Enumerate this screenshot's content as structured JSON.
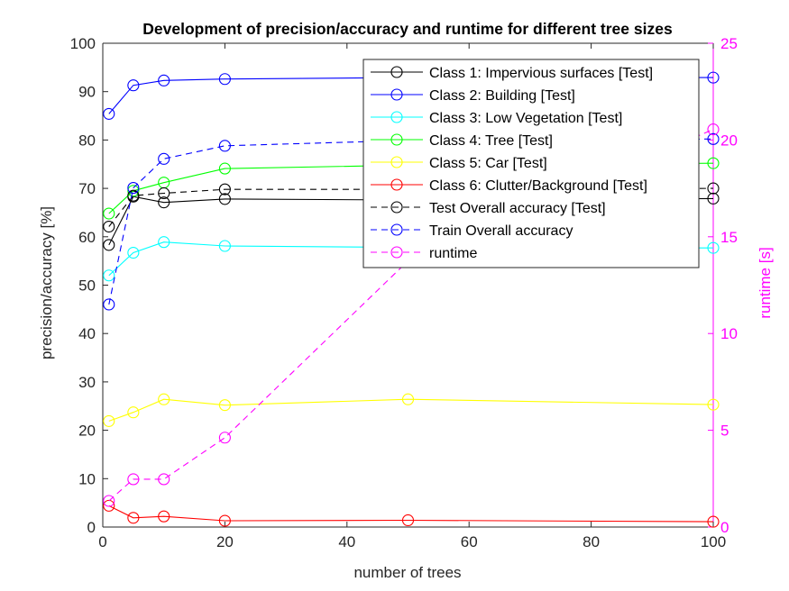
{
  "chart_data": {
    "type": "line",
    "title": "Development of precision/accuracy and runtime for different tree sizes",
    "xlabel": "number of trees",
    "ylabel_left": "precision/accuracy [%]",
    "ylabel_right": "runtime [s]",
    "xlim": [
      0,
      100
    ],
    "ylim_left": [
      0,
      100
    ],
    "ylim_right": [
      0,
      25
    ],
    "x_ticks": [
      0,
      20,
      40,
      60,
      80,
      100
    ],
    "y_ticks_left": [
      0,
      10,
      20,
      30,
      40,
      50,
      60,
      70,
      80,
      90,
      100
    ],
    "y_ticks_right": [
      0,
      5,
      10,
      15,
      20,
      25
    ],
    "x": [
      1,
      5,
      10,
      20,
      50,
      100
    ],
    "grid": false,
    "legend_position": "top-right",
    "colors": {
      "axis_left": "#262626",
      "axis_right": "#ff00ff"
    },
    "series": [
      {
        "name": "Class 1: Impervious surfaces [Test]",
        "axis": "left",
        "color": "#000000",
        "dash": "solid",
        "values": [
          58.3,
          68.3,
          67.1,
          67.8,
          67.6,
          67.9
        ]
      },
      {
        "name": "Class 2: Building [Test]",
        "axis": "left",
        "color": "#0000ff",
        "dash": "solid",
        "values": [
          85.4,
          91.3,
          92.3,
          92.6,
          92.9,
          92.9
        ]
      },
      {
        "name": "Class 3: Low Vegetation [Test]",
        "axis": "left",
        "color": "#00ffff",
        "dash": "solid",
        "values": [
          52.0,
          56.7,
          58.9,
          58.1,
          57.8,
          57.7
        ]
      },
      {
        "name": "Class 4: Tree [Test]",
        "axis": "left",
        "color": "#00ff00",
        "dash": "solid",
        "values": [
          64.8,
          69.5,
          71.2,
          74.1,
          74.8,
          75.2
        ]
      },
      {
        "name": "Class 5: Car [Test]",
        "axis": "left",
        "color": "#ffff00",
        "dash": "solid",
        "values": [
          21.9,
          23.7,
          26.4,
          25.2,
          26.4,
          25.3
        ]
      },
      {
        "name": "Class 6: Clutter/Background [Test]",
        "axis": "left",
        "color": "#ff0000",
        "dash": "solid",
        "values": [
          4.4,
          1.9,
          2.2,
          1.3,
          1.4,
          1.1
        ]
      },
      {
        "name": "Test Overall accuracy [Test]",
        "axis": "left",
        "color": "#000000",
        "dash": "dashed",
        "values": [
          62.1,
          68.5,
          69.0,
          69.8,
          69.8,
          70.0
        ]
      },
      {
        "name": "Train Overall accuracy",
        "axis": "left",
        "color": "#0000ff",
        "dash": "dashed",
        "values": [
          46.0,
          70.1,
          76.1,
          78.8,
          79.9,
          80.2
        ]
      },
      {
        "name": "runtime",
        "axis": "right",
        "color": "#ff00ff",
        "dash": "dashed",
        "values": [
          1.35,
          2.47,
          2.47,
          4.62,
          13.75,
          20.55
        ]
      }
    ]
  }
}
